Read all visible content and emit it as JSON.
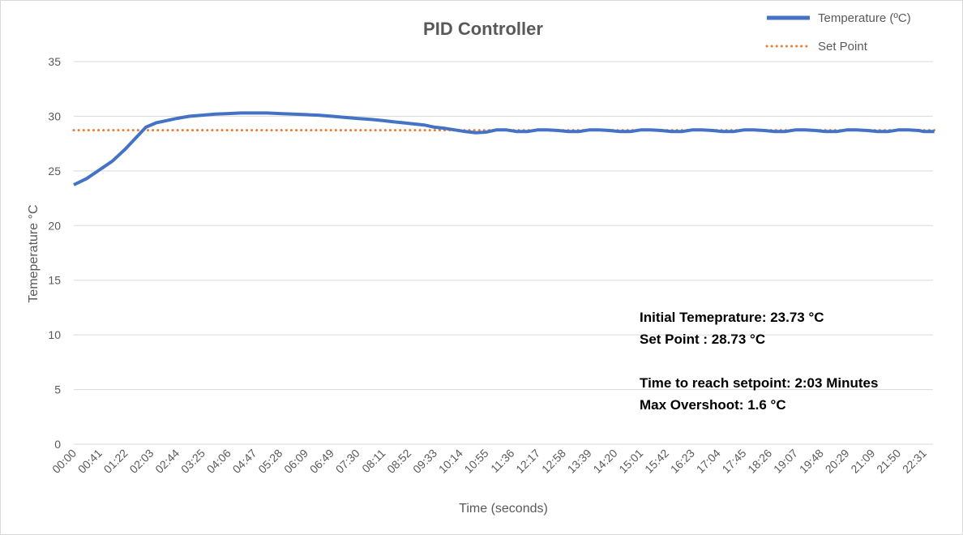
{
  "chart_data": {
    "type": "line",
    "title": "PID Controller",
    "xlabel": "Time (seconds)",
    "ylabel": "Temeperature °C",
    "ylim": [
      0,
      35
    ],
    "yticks": [
      "0",
      "5",
      "10",
      "15",
      "20",
      "25",
      "30",
      "35"
    ],
    "xticks": [
      "00:00",
      "00:41",
      "01:22",
      "02:03",
      "02:44",
      "03:25",
      "04:06",
      "04:47",
      "05:28",
      "06:09",
      "06:49",
      "07:30",
      "08:11",
      "08:52",
      "09:33",
      "10:14",
      "10:55",
      "11:36",
      "12:17",
      "12:58",
      "13:39",
      "14:20",
      "15:01",
      "15:42",
      "16:23",
      "17:04",
      "17:45",
      "18:26",
      "19:07",
      "19:48",
      "20:29",
      "21:09",
      "21:50",
      "22:31"
    ],
    "grid": true,
    "legend": "top-right",
    "series": [
      {
        "name": "Temperature (ºC)",
        "color": "#4472C4",
        "style": "solid",
        "x": [
          0,
          0.5,
          1,
          1.5,
          2,
          2.4,
          2.8,
          3.2,
          3.6,
          4,
          4.5,
          5,
          5.5,
          6,
          6.5,
          7,
          7.5,
          8,
          8.5,
          9,
          9.5,
          10,
          10.5,
          11,
          11.3,
          11.6,
          12,
          12.4,
          12.8,
          13.2,
          13.6,
          14,
          14.4,
          14.8,
          15.2,
          15.6,
          16,
          16.4,
          16.8,
          17.2,
          17.6,
          18,
          18.4,
          18.8,
          19.2,
          19.6,
          20,
          20.4,
          20.8,
          21.2,
          21.6,
          22,
          22.4,
          22.8,
          23.2,
          23.6,
          24,
          24.4,
          24.8,
          25.2,
          25.6,
          26,
          26.4,
          26.8,
          27.2,
          27.6,
          28,
          28.4,
          28.8,
          29.2,
          29.6,
          30,
          30.4,
          30.8,
          31.2,
          31.6,
          32,
          32.4,
          32.8,
          33,
          33.4
        ],
        "values": [
          23.73,
          24.3,
          25.1,
          25.9,
          27.0,
          28.0,
          29.0,
          29.4,
          29.6,
          29.8,
          30.0,
          30.1,
          30.2,
          30.25,
          30.3,
          30.3,
          30.3,
          30.25,
          30.2,
          30.15,
          30.1,
          30.0,
          29.9,
          29.8,
          29.75,
          29.7,
          29.6,
          29.5,
          29.4,
          29.3,
          29.2,
          29.0,
          28.9,
          28.75,
          28.6,
          28.5,
          28.55,
          28.75,
          28.75,
          28.6,
          28.6,
          28.75,
          28.75,
          28.7,
          28.6,
          28.6,
          28.75,
          28.75,
          28.7,
          28.6,
          28.6,
          28.75,
          28.75,
          28.7,
          28.6,
          28.6,
          28.75,
          28.75,
          28.7,
          28.6,
          28.6,
          28.75,
          28.75,
          28.7,
          28.6,
          28.6,
          28.75,
          28.75,
          28.7,
          28.6,
          28.6,
          28.75,
          28.75,
          28.7,
          28.6,
          28.6,
          28.75,
          28.75,
          28.7,
          28.6,
          28.6
        ]
      },
      {
        "name": "Set Point",
        "color": "#ED7D31",
        "style": "dotted",
        "x": [
          0,
          33.4
        ],
        "values": [
          28.73,
          28.73
        ]
      }
    ],
    "annotations": [
      "Initial Temeprature: 23.73 °C",
      "Set Point : 28.73 °C",
      "",
      "Time to reach setpoint: 2:03 Minutes",
      "Max Overshoot: 1.6 °C"
    ]
  }
}
